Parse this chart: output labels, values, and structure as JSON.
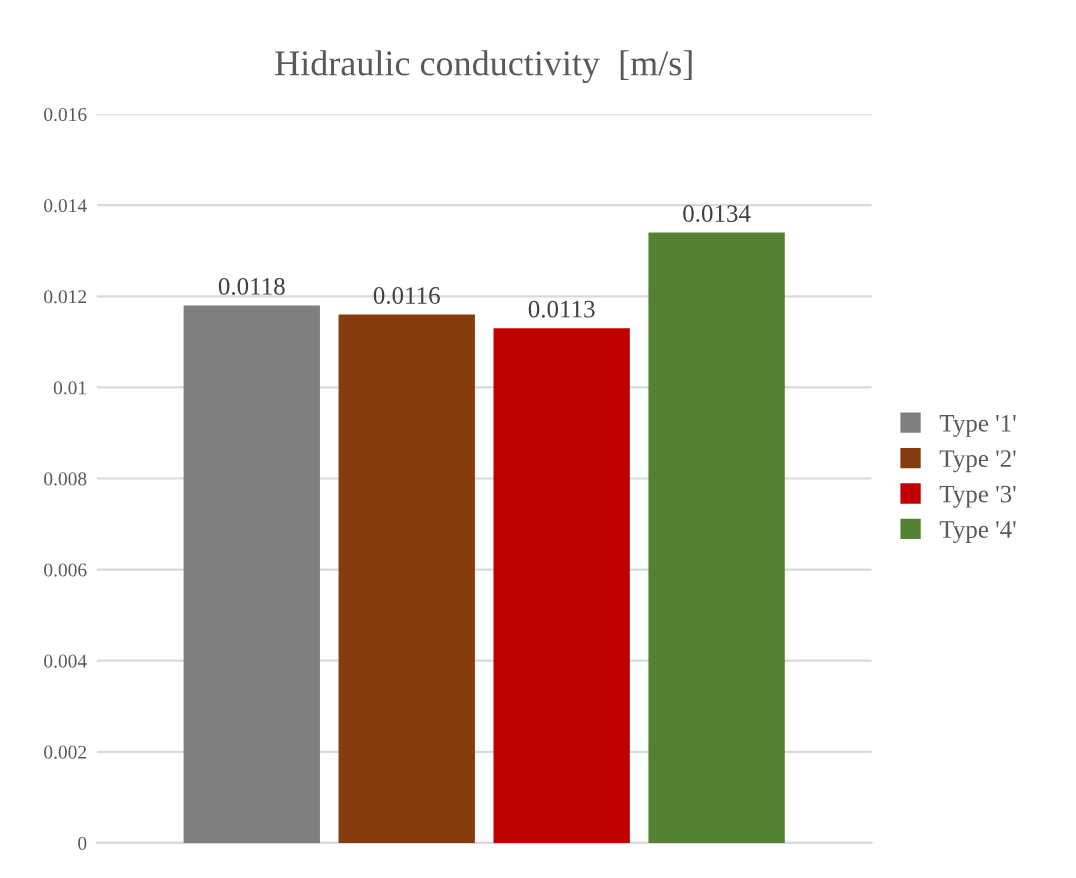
{
  "chart_data": {
    "type": "bar",
    "title": "Hidraulic conductivity  [m/s]",
    "categories": [
      null
    ],
    "series": [
      {
        "name": "Type '1'",
        "color": "#7f7f7f",
        "values": [
          0.0118
        ]
      },
      {
        "name": "Type '2'",
        "color": "#843c0c",
        "values": [
          0.0116
        ]
      },
      {
        "name": "Type '3'",
        "color": "#c00000",
        "values": [
          0.0113
        ]
      },
      {
        "name": "Type '4'",
        "color": "#548235",
        "values": [
          0.0134
        ]
      }
    ],
    "ylim": [
      0,
      0.016
    ],
    "yticks": [
      0,
      0.002,
      0.004,
      0.006,
      0.008,
      0.01,
      0.012,
      0.014,
      0.016
    ],
    "grid": "y",
    "legend": "right",
    "data_labels": true
  }
}
